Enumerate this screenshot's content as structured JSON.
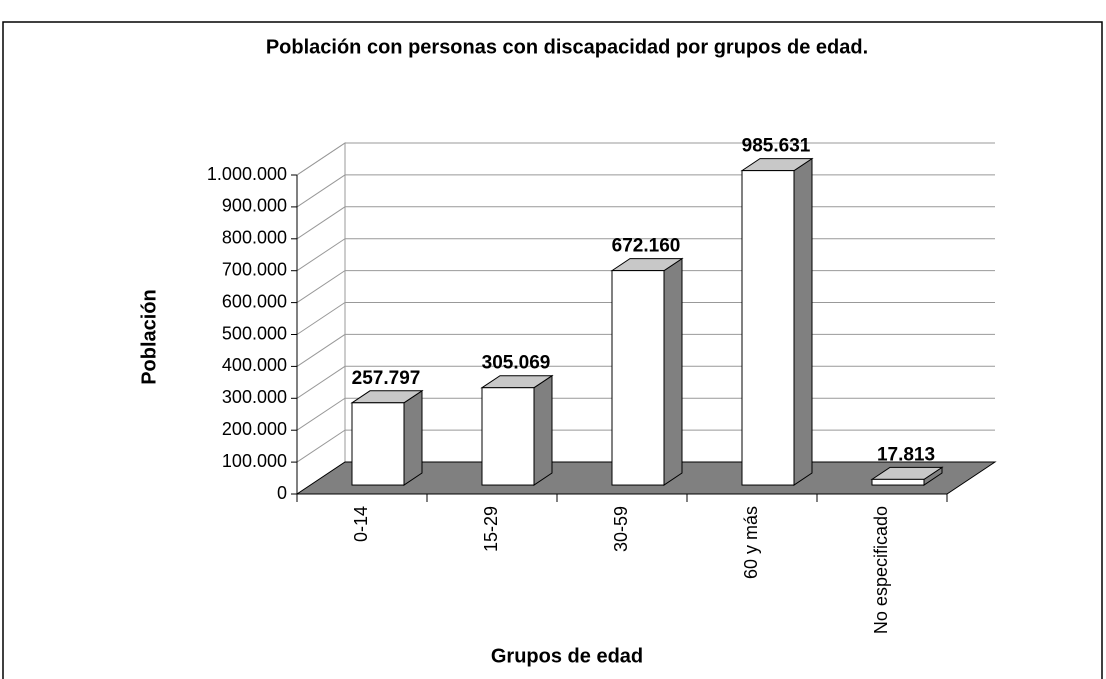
{
  "chart_data": {
    "type": "bar3d",
    "title": "Población con personas con discapacidad por grupos de edad.",
    "y_label": "Población",
    "x_label": "Grupos de edad",
    "categories": [
      "0-14",
      "15-29",
      "30-59",
      "60 y más",
      "No especificado"
    ],
    "values": [
      257797,
      305069,
      672160,
      985631,
      17813
    ],
    "value_labels": [
      "257.797",
      "305.069",
      "672.160",
      "985.631",
      "17.813"
    ],
    "color": "#ffffff",
    "ylim": [
      0,
      1000000
    ],
    "yticks": [
      0,
      {
        "value": 100000,
        "label": "100.000"
      },
      {
        "value": 200000,
        "label": "200.000"
      },
      {
        "value": 300000,
        "label": "300.000"
      },
      {
        "value": 400000,
        "label": "400.000"
      },
      {
        "value": 500000,
        "label": "500.000"
      },
      {
        "value": 600000,
        "label": "600.000"
      },
      {
        "value": 700000,
        "label": "700.000"
      },
      {
        "value": 800000,
        "label": "800.000"
      },
      {
        "value": 900000,
        "label": "900.000"
      },
      {
        "value": 1000000,
        "label": "1.000.000"
      }
    ],
    "grid": true
  }
}
